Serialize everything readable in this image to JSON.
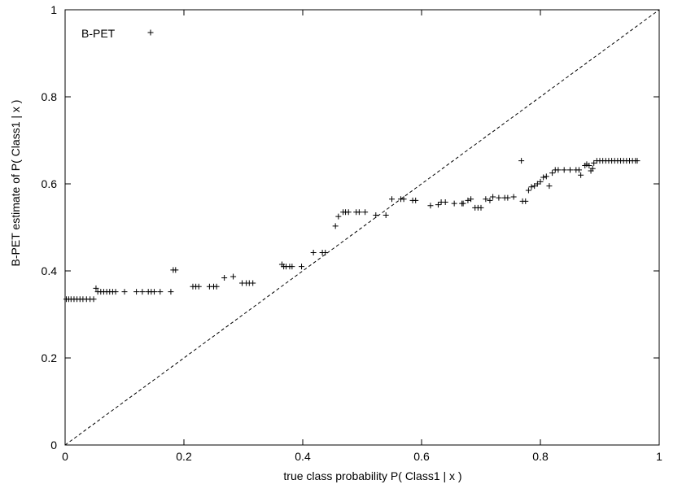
{
  "chart_data": {
    "type": "scatter",
    "title": "",
    "xlabel": "true class probability P( Class1 | x )",
    "ylabel": "B-PET estimate of P( Class1 | x )",
    "xlim": [
      0,
      1
    ],
    "ylim": [
      0,
      1
    ],
    "x_ticks": [
      0,
      0.2,
      0.4,
      0.6,
      0.8,
      1
    ],
    "x_tick_labels": [
      "0",
      "0.2",
      "0.4",
      "0.6",
      "0.8",
      "1"
    ],
    "y_ticks": [
      0,
      0.2,
      0.4,
      0.6,
      0.8,
      1
    ],
    "y_tick_labels": [
      "0",
      "0.2",
      "0.4",
      "0.6",
      "0.8",
      "1"
    ],
    "grid": false,
    "legend_position": "top-left",
    "reference_line": {
      "x": [
        0,
        1
      ],
      "y": [
        0,
        1
      ],
      "style": "dashed"
    },
    "series": [
      {
        "name": "B-PET",
        "marker": "+",
        "points": [
          [
            0.002,
            0.335
          ],
          [
            0.006,
            0.335
          ],
          [
            0.01,
            0.335
          ],
          [
            0.015,
            0.335
          ],
          [
            0.02,
            0.335
          ],
          [
            0.025,
            0.335
          ],
          [
            0.03,
            0.335
          ],
          [
            0.036,
            0.335
          ],
          [
            0.042,
            0.335
          ],
          [
            0.048,
            0.335
          ],
          [
            0.052,
            0.36
          ],
          [
            0.055,
            0.352
          ],
          [
            0.06,
            0.352
          ],
          [
            0.065,
            0.352
          ],
          [
            0.07,
            0.352
          ],
          [
            0.075,
            0.352
          ],
          [
            0.08,
            0.352
          ],
          [
            0.085,
            0.352
          ],
          [
            0.1,
            0.352
          ],
          [
            0.12,
            0.352
          ],
          [
            0.13,
            0.352
          ],
          [
            0.14,
            0.352
          ],
          [
            0.145,
            0.352
          ],
          [
            0.15,
            0.352
          ],
          [
            0.16,
            0.352
          ],
          [
            0.178,
            0.352
          ],
          [
            0.182,
            0.402
          ],
          [
            0.186,
            0.402
          ],
          [
            0.215,
            0.364
          ],
          [
            0.22,
            0.364
          ],
          [
            0.225,
            0.364
          ],
          [
            0.243,
            0.364
          ],
          [
            0.25,
            0.364
          ],
          [
            0.255,
            0.364
          ],
          [
            0.268,
            0.384
          ],
          [
            0.283,
            0.387
          ],
          [
            0.298,
            0.372
          ],
          [
            0.305,
            0.372
          ],
          [
            0.31,
            0.372
          ],
          [
            0.316,
            0.372
          ],
          [
            0.365,
            0.415
          ],
          [
            0.368,
            0.41
          ],
          [
            0.372,
            0.41
          ],
          [
            0.378,
            0.41
          ],
          [
            0.382,
            0.41
          ],
          [
            0.398,
            0.41
          ],
          [
            0.418,
            0.442
          ],
          [
            0.433,
            0.442
          ],
          [
            0.438,
            0.442
          ],
          [
            0.455,
            0.503
          ],
          [
            0.46,
            0.525
          ],
          [
            0.468,
            0.535
          ],
          [
            0.472,
            0.535
          ],
          [
            0.477,
            0.535
          ],
          [
            0.49,
            0.535
          ],
          [
            0.495,
            0.535
          ],
          [
            0.505,
            0.535
          ],
          [
            0.523,
            0.528
          ],
          [
            0.54,
            0.528
          ],
          [
            0.55,
            0.565
          ],
          [
            0.565,
            0.565
          ],
          [
            0.57,
            0.565
          ],
          [
            0.585,
            0.562
          ],
          [
            0.59,
            0.562
          ],
          [
            0.615,
            0.55
          ],
          [
            0.628,
            0.552
          ],
          [
            0.633,
            0.558
          ],
          [
            0.64,
            0.558
          ],
          [
            0.655,
            0.555
          ],
          [
            0.668,
            0.555
          ],
          [
            0.67,
            0.555
          ],
          [
            0.678,
            0.562
          ],
          [
            0.683,
            0.565
          ],
          [
            0.69,
            0.545
          ],
          [
            0.695,
            0.545
          ],
          [
            0.7,
            0.545
          ],
          [
            0.708,
            0.565
          ],
          [
            0.715,
            0.562
          ],
          [
            0.72,
            0.57
          ],
          [
            0.73,
            0.568
          ],
          [
            0.74,
            0.568
          ],
          [
            0.745,
            0.568
          ],
          [
            0.755,
            0.57
          ],
          [
            0.768,
            0.653
          ],
          [
            0.77,
            0.56
          ],
          [
            0.775,
            0.56
          ],
          [
            0.78,
            0.585
          ],
          [
            0.785,
            0.593
          ],
          [
            0.79,
            0.595
          ],
          [
            0.795,
            0.6
          ],
          [
            0.8,
            0.605
          ],
          [
            0.805,
            0.615
          ],
          [
            0.81,
            0.617
          ],
          [
            0.815,
            0.595
          ],
          [
            0.82,
            0.625
          ],
          [
            0.825,
            0.632
          ],
          [
            0.83,
            0.632
          ],
          [
            0.84,
            0.632
          ],
          [
            0.85,
            0.632
          ],
          [
            0.86,
            0.632
          ],
          [
            0.865,
            0.632
          ],
          [
            0.868,
            0.62
          ],
          [
            0.875,
            0.642
          ],
          [
            0.878,
            0.645
          ],
          [
            0.882,
            0.642
          ],
          [
            0.885,
            0.63
          ],
          [
            0.888,
            0.635
          ],
          [
            0.89,
            0.648
          ],
          [
            0.895,
            0.653
          ],
          [
            0.9,
            0.653
          ],
          [
            0.905,
            0.653
          ],
          [
            0.91,
            0.653
          ],
          [
            0.915,
            0.653
          ],
          [
            0.92,
            0.653
          ],
          [
            0.925,
            0.653
          ],
          [
            0.93,
            0.653
          ],
          [
            0.935,
            0.653
          ],
          [
            0.94,
            0.653
          ],
          [
            0.945,
            0.653
          ],
          [
            0.95,
            0.653
          ],
          [
            0.955,
            0.653
          ],
          [
            0.96,
            0.653
          ],
          [
            0.963,
            0.653
          ]
        ]
      }
    ]
  }
}
